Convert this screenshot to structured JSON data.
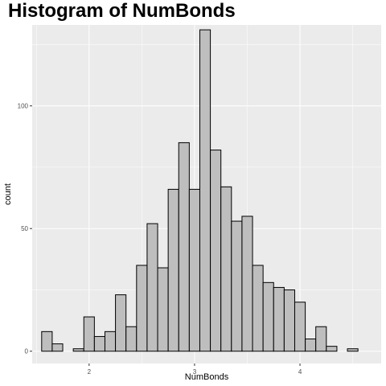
{
  "chart_data": {
    "type": "bar",
    "title": "Histogram of NumBonds",
    "xlabel": "NumBonds",
    "ylabel": "count",
    "xlim": [
      1.46,
      4.77
    ],
    "ylim": [
      -5,
      133
    ],
    "x_ticks": [
      2,
      3,
      4
    ],
    "y_ticks": [
      0,
      50,
      100
    ],
    "grid": true,
    "bar_fill": "#bebebe",
    "bar_stroke": "#000000",
    "panel_background": "#ebebeb",
    "grid_color": "#ffffff",
    "bin_width": 0.1,
    "bin_centers": [
      1.6,
      1.7,
      1.8,
      1.9,
      2.0,
      2.1,
      2.2,
      2.3,
      2.4,
      2.5,
      2.6,
      2.7,
      2.8,
      2.9,
      3.0,
      3.1,
      3.2,
      3.3,
      3.4,
      3.5,
      3.6,
      3.7,
      3.8,
      3.9,
      4.0,
      4.1,
      4.2,
      4.3,
      4.4,
      4.5,
      4.6
    ],
    "values": [
      8,
      3,
      0,
      1,
      14,
      6,
      8,
      23,
      10,
      35,
      52,
      34,
      66,
      85,
      66,
      131,
      82,
      67,
      53,
      55,
      35,
      28,
      26,
      25,
      20,
      5,
      10,
      2,
      0,
      1,
      0
    ]
  }
}
